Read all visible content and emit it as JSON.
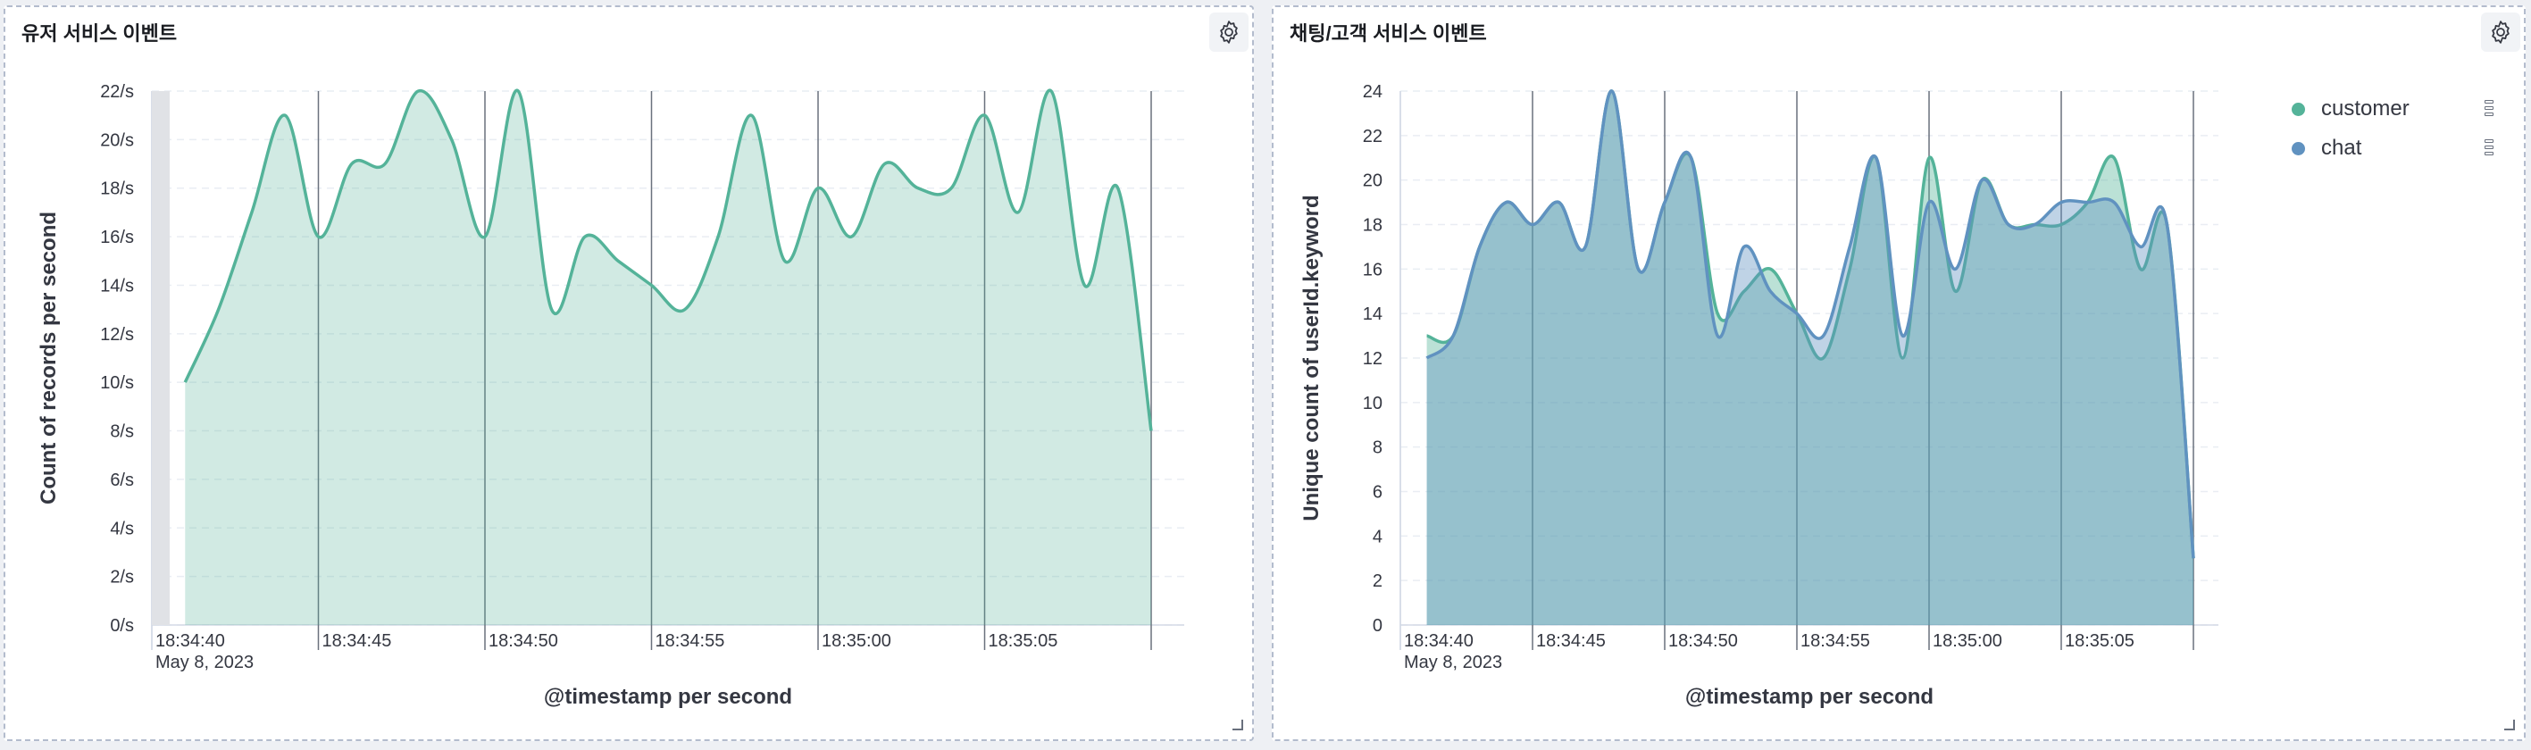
{
  "panels": [
    {
      "title": "유저 서비스 이벤트",
      "icon": "gear-icon",
      "chart_data": {
        "type": "area",
        "xlabel": "@timestamp per second",
        "ylabel": "Count of records per second",
        "ylim": [
          0,
          22
        ],
        "y_tick_values": [
          0,
          2,
          4,
          6,
          8,
          10,
          12,
          14,
          16,
          18,
          20,
          22
        ],
        "y_tick_suffix": "/s",
        "x_tick_labels": [
          "18:34:40",
          "18:34:45",
          "18:34:50",
          "18:34:55",
          "18:35:00",
          "18:35:05"
        ],
        "x_date_label": "May 8, 2023",
        "grid": true,
        "legend": "none",
        "x": [
          "18:34:41",
          "18:34:42",
          "18:34:43",
          "18:34:44",
          "18:34:45",
          "18:34:46",
          "18:34:47",
          "18:34:48",
          "18:34:49",
          "18:34:50",
          "18:34:51",
          "18:34:52",
          "18:34:53",
          "18:34:54",
          "18:34:55",
          "18:34:56",
          "18:34:57",
          "18:34:58",
          "18:34:59",
          "18:35:00",
          "18:35:01",
          "18:35:02",
          "18:35:03",
          "18:35:04",
          "18:35:05",
          "18:35:06",
          "18:35:07",
          "18:35:08",
          "18:35:09",
          "18:35:10"
        ],
        "series": [
          {
            "color": "#54b399",
            "values": [
              10,
              13,
              17,
              21,
              16,
              19,
              19,
              22,
              20,
              16,
              22,
              13,
              16,
              15,
              14,
              13,
              16,
              21,
              15,
              18,
              16,
              19,
              18,
              18,
              21,
              17,
              22,
              14,
              18,
              8
            ]
          }
        ]
      }
    },
    {
      "title": "채팅/고객 서비스 이벤트",
      "icon": "gear-icon",
      "chart_data": {
        "type": "area",
        "xlabel": "@timestamp per second",
        "ylabel": "Unique count of userId.keyword",
        "ylim": [
          0,
          24
        ],
        "y_tick_values": [
          0,
          2,
          4,
          6,
          8,
          10,
          12,
          14,
          16,
          18,
          20,
          22,
          24
        ],
        "y_tick_suffix": "",
        "x_tick_labels": [
          "18:34:40",
          "18:34:45",
          "18:34:50",
          "18:34:55",
          "18:35:00",
          "18:35:05"
        ],
        "x_date_label": "May 8, 2023",
        "grid": true,
        "legend": "top-right",
        "x": [
          "18:34:41",
          "18:34:42",
          "18:34:43",
          "18:34:44",
          "18:34:45",
          "18:34:46",
          "18:34:47",
          "18:34:48",
          "18:34:49",
          "18:34:50",
          "18:34:51",
          "18:34:52",
          "18:34:53",
          "18:34:54",
          "18:34:55",
          "18:34:56",
          "18:34:57",
          "18:34:58",
          "18:34:59",
          "18:35:00",
          "18:35:01",
          "18:35:02",
          "18:35:03",
          "18:35:04",
          "18:35:05",
          "18:35:06",
          "18:35:07",
          "18:35:08",
          "18:35:09",
          "18:35:10"
        ],
        "series": [
          {
            "name": "customer",
            "color": "#54b399",
            "values": [
              13,
              13,
              17,
              19,
              18,
              19,
              17,
              24,
              16,
              19,
              21,
              14,
              15,
              16,
              14,
              12,
              16,
              21,
              12,
              21,
              15,
              20,
              18,
              18,
              18,
              19,
              21,
              16,
              18,
              3
            ]
          },
          {
            "name": "chat",
            "color": "#6092c0",
            "values": [
              12,
              13,
              17,
              19,
              18,
              19,
              17,
              24,
              16,
              19,
              21,
              13,
              17,
              15,
              14,
              13,
              17,
              21,
              13,
              19,
              16,
              20,
              18,
              18,
              19,
              19,
              19,
              17,
              18,
              3
            ]
          }
        ]
      }
    }
  ]
}
